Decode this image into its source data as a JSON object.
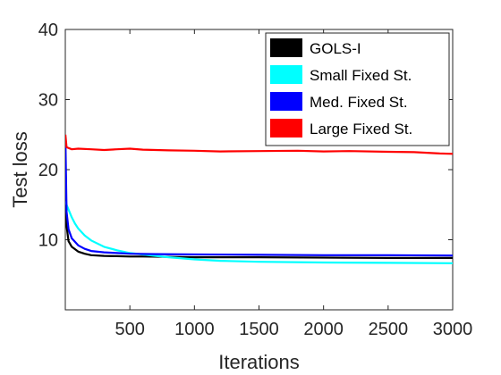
{
  "chart_data": {
    "type": "line",
    "xlabel": "Iterations",
    "ylabel": "Test loss",
    "xlim": [
      0,
      3000
    ],
    "ylim": [
      0,
      40
    ],
    "xticks": [
      500,
      1000,
      1500,
      2000,
      2500,
      3000
    ],
    "yticks": [
      10,
      20,
      30,
      40
    ],
    "grid": false,
    "legend_position": "top-right",
    "series": [
      {
        "name": "GOLS-I",
        "color": "#000000",
        "x": [
          1,
          10,
          25,
          50,
          100,
          150,
          200,
          300,
          400,
          500,
          600,
          800,
          1000,
          1500,
          2000,
          2500,
          3000
        ],
        "y": [
          22,
          12,
          9.8,
          9.0,
          8.3,
          8.0,
          7.8,
          7.7,
          7.65,
          7.6,
          7.6,
          7.55,
          7.5,
          7.5,
          7.45,
          7.4,
          7.4
        ]
      },
      {
        "name": "Small Fixed St.",
        "color": "#00ffff",
        "x": [
          1,
          10,
          25,
          50,
          75,
          100,
          150,
          200,
          300,
          400,
          500,
          600,
          800,
          1000,
          1200,
          1500,
          2000,
          2500,
          3000
        ],
        "y": [
          15.5,
          15.0,
          14.3,
          13.2,
          12.3,
          11.6,
          10.6,
          9.9,
          9.0,
          8.5,
          8.1,
          7.9,
          7.5,
          7.2,
          7.0,
          6.85,
          6.75,
          6.7,
          6.65
        ]
      },
      {
        "name": "Med. Fixed St.",
        "color": "#0000ff",
        "x": [
          1,
          10,
          25,
          50,
          100,
          150,
          200,
          300,
          400,
          500,
          700,
          1000,
          1500,
          2000,
          2500,
          3000
        ],
        "y": [
          24.5,
          14,
          11.5,
          10.2,
          9.2,
          8.7,
          8.4,
          8.2,
          8.1,
          8.0,
          7.95,
          7.9,
          7.85,
          7.8,
          7.8,
          7.75
        ]
      },
      {
        "name": "Large Fixed St.",
        "color": "#ff0000",
        "x": [
          1,
          10,
          50,
          100,
          200,
          300,
          400,
          500,
          600,
          800,
          1000,
          1200,
          1500,
          1800,
          2000,
          2200,
          2500,
          2700,
          2900,
          3000
        ],
        "y": [
          25,
          23.2,
          22.9,
          23.0,
          22.9,
          22.8,
          22.9,
          23.0,
          22.85,
          22.75,
          22.7,
          22.6,
          22.65,
          22.7,
          22.6,
          22.65,
          22.55,
          22.5,
          22.3,
          22.25
        ]
      }
    ]
  }
}
